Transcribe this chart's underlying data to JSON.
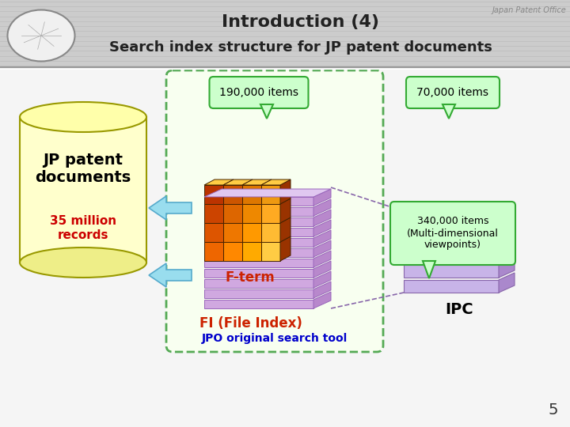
{
  "title_line1": "Introduction (4)",
  "title_line2": "Search index structure for JP patent documents",
  "watermark": "Japan Patent Office",
  "bg_color": "#e0e0e0",
  "header_bg": "#cccccc",
  "slide_bg": "#f5f5f5",
  "cylinder_fill": "#ffffcc",
  "cylinder_edge": "#999900",
  "cylinder_bottom": "#eeee88",
  "cylinder_top": "#ffffaa",
  "jp_patent_text": "JP patent\ndocuments",
  "jp_patent_color": "#000000",
  "records_text": "35 million\nrecords",
  "records_color": "#cc0000",
  "fi_face": "#d0a8e0",
  "fi_top": "#e0c8f0",
  "fi_right": "#b888cc",
  "fi_edge": "#9966bb",
  "fi_label": "FI (File Index)",
  "fi_label_color": "#cc2200",
  "ipc_face": "#c8b4e8",
  "ipc_top": "#ddd0f8",
  "ipc_right": "#aa88cc",
  "ipc_edge": "#8866aa",
  "ipc_label": "IPC",
  "ipc_label_color": "#000000",
  "fterm_front_dark": "#cc5500",
  "fterm_front_mid": "#ee8800",
  "fterm_front_light": "#ffaa00",
  "fterm_top": "#ffcc44",
  "fterm_right": "#993300",
  "fterm_edge": "#442200",
  "fterm_label": "F-term",
  "fterm_label_color": "#cc2200",
  "jpo_label": "JPO original search tool",
  "jpo_label_color": "#0000cc",
  "dashed_fill": "#f8fff0",
  "dashed_edge": "#55aa55",
  "bubble_fill": "#ccffcc",
  "bubble_edge": "#33aa33",
  "bubble_190": "190,000 items",
  "bubble_70": "70,000 items",
  "bubble_340_line1": "340,000 items",
  "bubble_340_line2": "(Multi-dimensional",
  "bubble_340_line3": "viewpoints)",
  "arrow_fill": "#99ddee",
  "arrow_edge": "#55aacc",
  "page_num": "5",
  "header_line_color": "#bbbbbb",
  "logo_fill": "#f0f0f0",
  "logo_edge": "#888888"
}
